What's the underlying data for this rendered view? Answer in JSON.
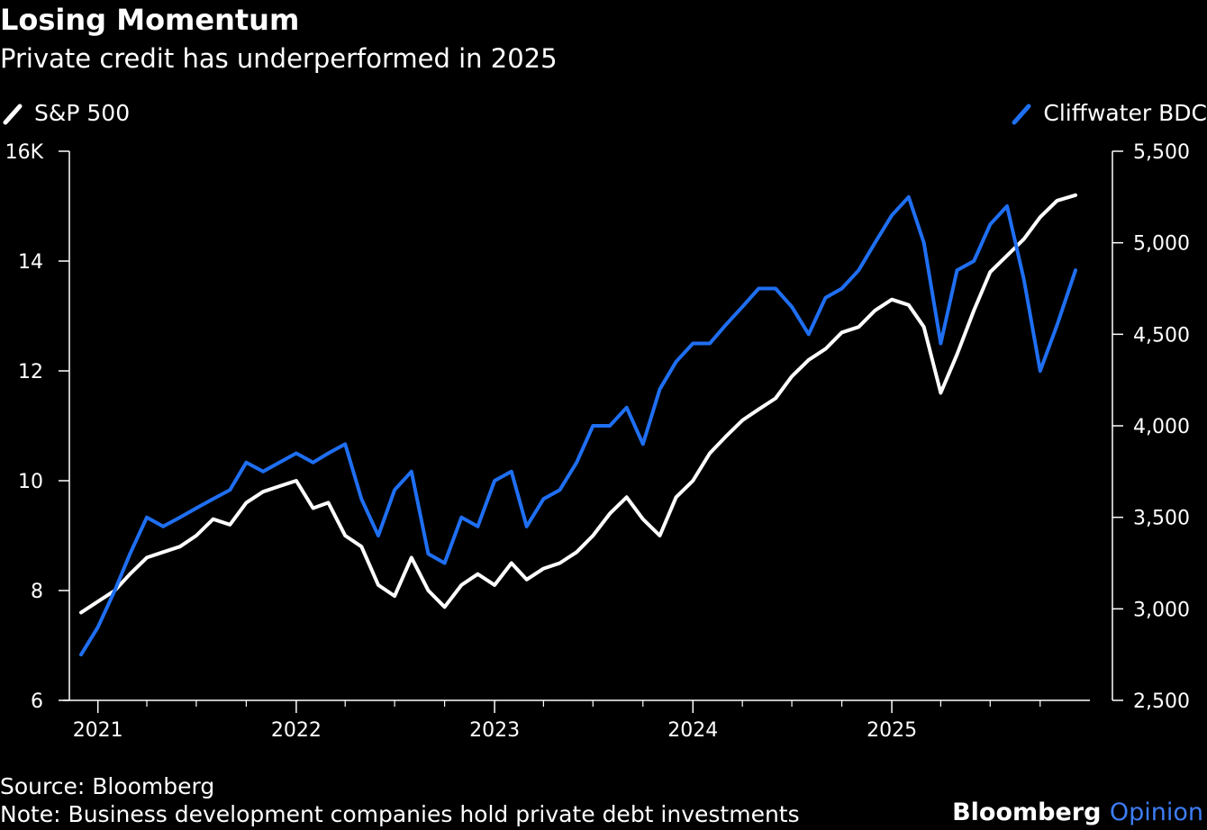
{
  "header": {
    "title": "Losing Momentum",
    "subtitle": "Private credit has underperformed in 2025"
  },
  "footer": {
    "source": "Source: Bloomberg",
    "note": "Note: Business development companies hold private debt investments",
    "brand_main": "Bloomberg",
    "brand_sub": "Opinion"
  },
  "colors": {
    "background": "#000000",
    "sp500": "#ffffff",
    "cliffwater": "#1f6ff2",
    "axis": "#ffffff"
  },
  "chart_data": {
    "type": "line",
    "title": "Losing Momentum",
    "subtitle": "Private credit has underperformed in 2025",
    "xlabel": "",
    "ylabel": "",
    "x_ticks": [
      "2021",
      "2022",
      "2023",
      "2024",
      "2025"
    ],
    "x_range": [
      "2020-12-01",
      "2025-12-10"
    ],
    "left_axis": {
      "series": "S&P 500",
      "ylim": [
        6,
        16
      ],
      "ticks": [
        6,
        8,
        10,
        12,
        14,
        16
      ],
      "tick_labels": [
        "6",
        "8",
        "10",
        "12",
        "14",
        "16K"
      ]
    },
    "right_axis": {
      "series": "Cliffwater BDC",
      "ylim": [
        2500,
        5500
      ],
      "ticks": [
        2500,
        3000,
        3500,
        4000,
        4500,
        5000,
        5500
      ],
      "tick_labels": [
        "2,500",
        "3,000",
        "3,500",
        "4,000",
        "4,500",
        "5,000",
        "5,500"
      ]
    },
    "legend": {
      "placement": "top"
    },
    "grid": false,
    "series": [
      {
        "name": "S&P 500",
        "axis": "left",
        "color": "#ffffff",
        "points": [
          [
            "2020-12-01",
            7.6
          ],
          [
            "2021-01-01",
            7.8
          ],
          [
            "2021-02-01",
            8.0
          ],
          [
            "2021-03-01",
            8.3
          ],
          [
            "2021-04-01",
            8.6
          ],
          [
            "2021-05-01",
            8.7
          ],
          [
            "2021-06-01",
            8.8
          ],
          [
            "2021-07-01",
            9.0
          ],
          [
            "2021-08-01",
            9.3
          ],
          [
            "2021-09-01",
            9.2
          ],
          [
            "2021-10-01",
            9.6
          ],
          [
            "2021-11-01",
            9.8
          ],
          [
            "2021-12-01",
            9.9
          ],
          [
            "2022-01-01",
            10.0
          ],
          [
            "2022-02-01",
            9.5
          ],
          [
            "2022-03-01",
            9.6
          ],
          [
            "2022-04-01",
            9.0
          ],
          [
            "2022-05-01",
            8.8
          ],
          [
            "2022-06-01",
            8.1
          ],
          [
            "2022-07-01",
            7.9
          ],
          [
            "2022-08-01",
            8.6
          ],
          [
            "2022-09-01",
            8.0
          ],
          [
            "2022-10-01",
            7.7
          ],
          [
            "2022-11-01",
            8.1
          ],
          [
            "2022-12-01",
            8.3
          ],
          [
            "2023-01-01",
            8.1
          ],
          [
            "2023-02-01",
            8.5
          ],
          [
            "2023-03-01",
            8.2
          ],
          [
            "2023-04-01",
            8.4
          ],
          [
            "2023-05-01",
            8.5
          ],
          [
            "2023-06-01",
            8.7
          ],
          [
            "2023-07-01",
            9.0
          ],
          [
            "2023-08-01",
            9.4
          ],
          [
            "2023-09-01",
            9.7
          ],
          [
            "2023-10-01",
            9.3
          ],
          [
            "2023-11-01",
            9.0
          ],
          [
            "2023-12-01",
            9.7
          ],
          [
            "2024-01-01",
            10.0
          ],
          [
            "2024-02-01",
            10.5
          ],
          [
            "2024-03-01",
            10.8
          ],
          [
            "2024-04-01",
            11.1
          ],
          [
            "2024-05-01",
            11.3
          ],
          [
            "2024-06-01",
            11.5
          ],
          [
            "2024-07-01",
            11.9
          ],
          [
            "2024-08-01",
            12.2
          ],
          [
            "2024-09-01",
            12.4
          ],
          [
            "2024-10-01",
            12.7
          ],
          [
            "2024-11-01",
            12.8
          ],
          [
            "2024-12-01",
            13.1
          ],
          [
            "2025-01-01",
            13.3
          ],
          [
            "2025-02-01",
            13.2
          ],
          [
            "2025-03-01",
            12.8
          ],
          [
            "2025-04-01",
            11.6
          ],
          [
            "2025-05-01",
            12.3
          ],
          [
            "2025-06-01",
            13.1
          ],
          [
            "2025-07-01",
            13.8
          ],
          [
            "2025-08-01",
            14.1
          ],
          [
            "2025-09-01",
            14.4
          ],
          [
            "2025-10-01",
            14.8
          ],
          [
            "2025-11-01",
            15.1
          ],
          [
            "2025-12-05",
            15.2
          ]
        ]
      },
      {
        "name": "Cliffwater BDC",
        "axis": "right",
        "color": "#1f6ff2",
        "points": [
          [
            "2020-12-01",
            2750
          ],
          [
            "2021-01-01",
            2900
          ],
          [
            "2021-02-01",
            3100
          ],
          [
            "2021-03-01",
            3300
          ],
          [
            "2021-04-01",
            3500
          ],
          [
            "2021-05-01",
            3450
          ],
          [
            "2021-06-01",
            3500
          ],
          [
            "2021-07-01",
            3550
          ],
          [
            "2021-08-01",
            3600
          ],
          [
            "2021-09-01",
            3650
          ],
          [
            "2021-10-01",
            3800
          ],
          [
            "2021-11-01",
            3750
          ],
          [
            "2021-12-01",
            3800
          ],
          [
            "2022-01-01",
            3850
          ],
          [
            "2022-02-01",
            3800
          ],
          [
            "2022-03-01",
            3850
          ],
          [
            "2022-04-01",
            3900
          ],
          [
            "2022-05-01",
            3600
          ],
          [
            "2022-06-01",
            3400
          ],
          [
            "2022-07-01",
            3650
          ],
          [
            "2022-08-01",
            3750
          ],
          [
            "2022-09-01",
            3300
          ],
          [
            "2022-10-01",
            3250
          ],
          [
            "2022-11-01",
            3500
          ],
          [
            "2022-12-01",
            3450
          ],
          [
            "2023-01-01",
            3700
          ],
          [
            "2023-02-01",
            3750
          ],
          [
            "2023-03-01",
            3450
          ],
          [
            "2023-04-01",
            3600
          ],
          [
            "2023-05-01",
            3650
          ],
          [
            "2023-06-01",
            3800
          ],
          [
            "2023-07-01",
            4000
          ],
          [
            "2023-08-01",
            4000
          ],
          [
            "2023-09-01",
            4100
          ],
          [
            "2023-10-01",
            3900
          ],
          [
            "2023-11-01",
            4200
          ],
          [
            "2023-12-01",
            4350
          ],
          [
            "2024-01-01",
            4450
          ],
          [
            "2024-02-01",
            4450
          ],
          [
            "2024-03-01",
            4550
          ],
          [
            "2024-04-01",
            4650
          ],
          [
            "2024-05-01",
            4750
          ],
          [
            "2024-06-01",
            4750
          ],
          [
            "2024-07-01",
            4650
          ],
          [
            "2024-08-01",
            4500
          ],
          [
            "2024-09-01",
            4700
          ],
          [
            "2024-10-01",
            4750
          ],
          [
            "2024-11-01",
            4850
          ],
          [
            "2024-12-01",
            5000
          ],
          [
            "2025-01-01",
            5150
          ],
          [
            "2025-02-01",
            5250
          ],
          [
            "2025-03-01",
            5000
          ],
          [
            "2025-04-01",
            4450
          ],
          [
            "2025-05-01",
            4850
          ],
          [
            "2025-06-01",
            4900
          ],
          [
            "2025-07-01",
            5100
          ],
          [
            "2025-08-01",
            5200
          ],
          [
            "2025-09-01",
            4800
          ],
          [
            "2025-10-01",
            4300
          ],
          [
            "2025-11-01",
            4550
          ],
          [
            "2025-12-05",
            4850
          ]
        ]
      }
    ]
  }
}
